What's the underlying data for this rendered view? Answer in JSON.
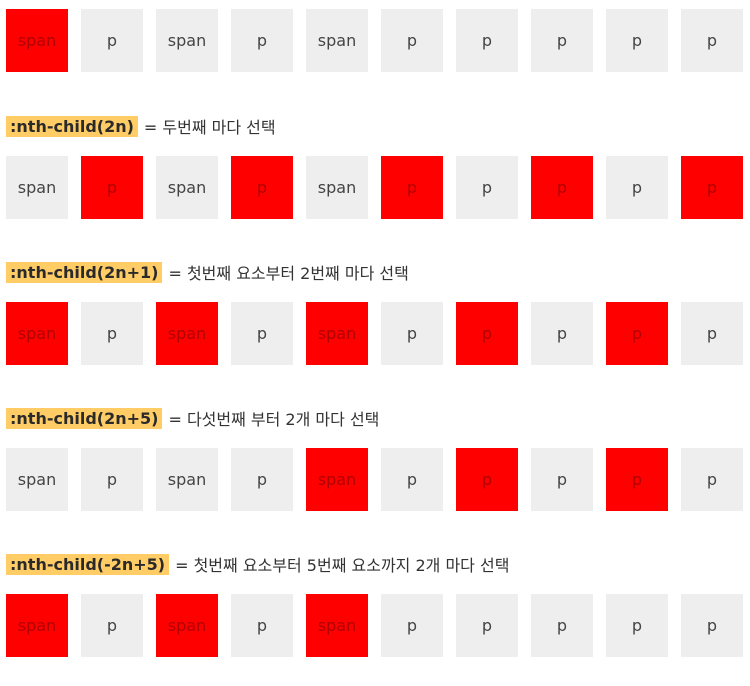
{
  "colors": {
    "selected": "#ff0000",
    "unselected": "#eeeeee",
    "highlight": "#ffcc66"
  },
  "sections": [
    {
      "selector": "",
      "description": "",
      "items": [
        {
          "label": "span",
          "selected": true
        },
        {
          "label": "p",
          "selected": false
        },
        {
          "label": "span",
          "selected": false
        },
        {
          "label": "p",
          "selected": false
        },
        {
          "label": "span",
          "selected": false
        },
        {
          "label": "p",
          "selected": false
        },
        {
          "label": "p",
          "selected": false
        },
        {
          "label": "p",
          "selected": false
        },
        {
          "label": "p",
          "selected": false
        },
        {
          "label": "p",
          "selected": false
        }
      ]
    },
    {
      "selector": ":nth-child(2n)",
      "description": "= 두번째 마다 선택",
      "items": [
        {
          "label": "span",
          "selected": false
        },
        {
          "label": "p",
          "selected": true
        },
        {
          "label": "span",
          "selected": false
        },
        {
          "label": "p",
          "selected": true
        },
        {
          "label": "span",
          "selected": false
        },
        {
          "label": "p",
          "selected": true
        },
        {
          "label": "p",
          "selected": false
        },
        {
          "label": "p",
          "selected": true
        },
        {
          "label": "p",
          "selected": false
        },
        {
          "label": "p",
          "selected": true
        }
      ]
    },
    {
      "selector": ":nth-child(2n+1)",
      "description": "= 첫번째 요소부터 2번째 마다 선택",
      "items": [
        {
          "label": "span",
          "selected": true
        },
        {
          "label": "p",
          "selected": false
        },
        {
          "label": "span",
          "selected": true
        },
        {
          "label": "p",
          "selected": false
        },
        {
          "label": "span",
          "selected": true
        },
        {
          "label": "p",
          "selected": false
        },
        {
          "label": "p",
          "selected": true
        },
        {
          "label": "p",
          "selected": false
        },
        {
          "label": "p",
          "selected": true
        },
        {
          "label": "p",
          "selected": false
        }
      ]
    },
    {
      "selector": ":nth-child(2n+5)",
      "description": "= 다섯번째 부터 2개 마다 선택",
      "items": [
        {
          "label": "span",
          "selected": false
        },
        {
          "label": "p",
          "selected": false
        },
        {
          "label": "span",
          "selected": false
        },
        {
          "label": "p",
          "selected": false
        },
        {
          "label": "span",
          "selected": true
        },
        {
          "label": "p",
          "selected": false
        },
        {
          "label": "p",
          "selected": true
        },
        {
          "label": "p",
          "selected": false
        },
        {
          "label": "p",
          "selected": true
        },
        {
          "label": "p",
          "selected": false
        }
      ]
    },
    {
      "selector": ":nth-child(-2n+5)",
      "description": "= 첫번째 요소부터 5번째 요소까지 2개 마다 선택",
      "items": [
        {
          "label": "span",
          "selected": true
        },
        {
          "label": "p",
          "selected": false
        },
        {
          "label": "span",
          "selected": true
        },
        {
          "label": "p",
          "selected": false
        },
        {
          "label": "span",
          "selected": true
        },
        {
          "label": "p",
          "selected": false
        },
        {
          "label": "p",
          "selected": false
        },
        {
          "label": "p",
          "selected": false
        },
        {
          "label": "p",
          "selected": false
        },
        {
          "label": "p",
          "selected": false
        }
      ]
    }
  ]
}
